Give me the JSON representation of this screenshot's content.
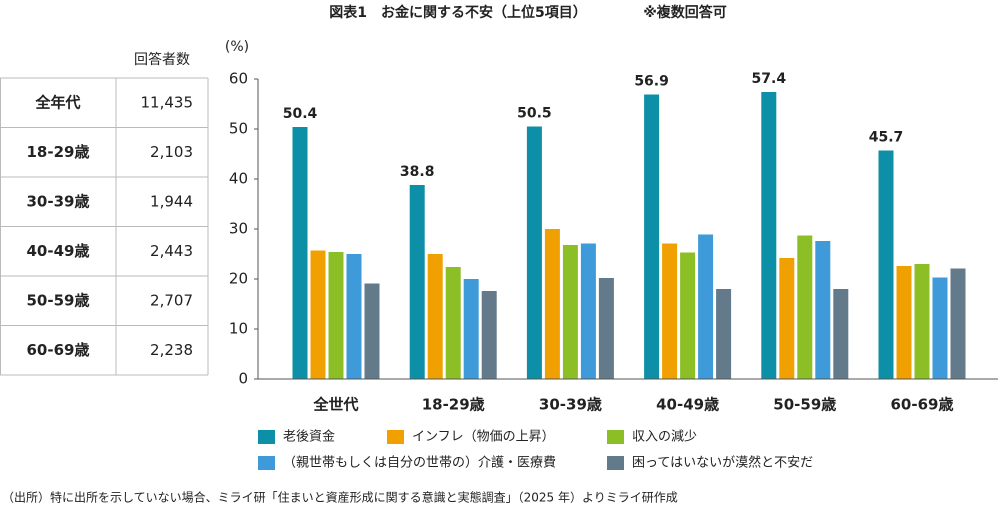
{
  "chart_data": {
    "type": "bar",
    "title": "図表1　お金に関する不安（上位5項目）",
    "subtitle": "※複数回答可",
    "y_label": "(%)",
    "categories": [
      "全世代",
      "18-29歳",
      "30-39歳",
      "40-49歳",
      "50-59歳",
      "60-69歳"
    ],
    "series": [
      {
        "name": "老後資金",
        "color": "#0e8fa8",
        "values": [
          50.4,
          38.8,
          50.5,
          56.9,
          57.4,
          45.7
        ],
        "labels": true
      },
      {
        "name": "インフレ（物価の上昇）",
        "color": "#f0a000",
        "values": [
          25.7,
          25.0,
          30.0,
          27.1,
          24.2,
          22.6
        ]
      },
      {
        "name": "収入の減少",
        "color": "#8cbf26",
        "values": [
          25.4,
          22.4,
          26.8,
          25.3,
          28.7,
          23.0
        ]
      },
      {
        "name": "（親世帯もしくは自分の世帯の）介護・医療費",
        "color": "#3e9ad8",
        "values": [
          25.0,
          20.0,
          27.1,
          28.9,
          27.6,
          20.3
        ]
      },
      {
        "name": "困ってはいないが漠然と不安だ",
        "color": "#637a8a",
        "values": [
          19.1,
          17.6,
          20.2,
          18.0,
          18.0,
          22.1
        ]
      }
    ],
    "ylim": [
      0,
      60
    ],
    "yticks": [
      0,
      10,
      20,
      30,
      40,
      50,
      60
    ],
    "grid": false
  },
  "table": {
    "header": "回答者数",
    "rows": [
      [
        "全年代",
        "11,435"
      ],
      [
        "18-29歳",
        "2,103"
      ],
      [
        "30-39歳",
        "1,944"
      ],
      [
        "40-49歳",
        "2,443"
      ],
      [
        "50-59歳",
        "2,707"
      ],
      [
        "60-69歳",
        "2,238"
      ]
    ]
  },
  "footnote": "（出所）特に出所を示していない場合、ミライ研「住まいと資産形成に関する意識と実態調査」（2025 年）よりミライ研作成"
}
